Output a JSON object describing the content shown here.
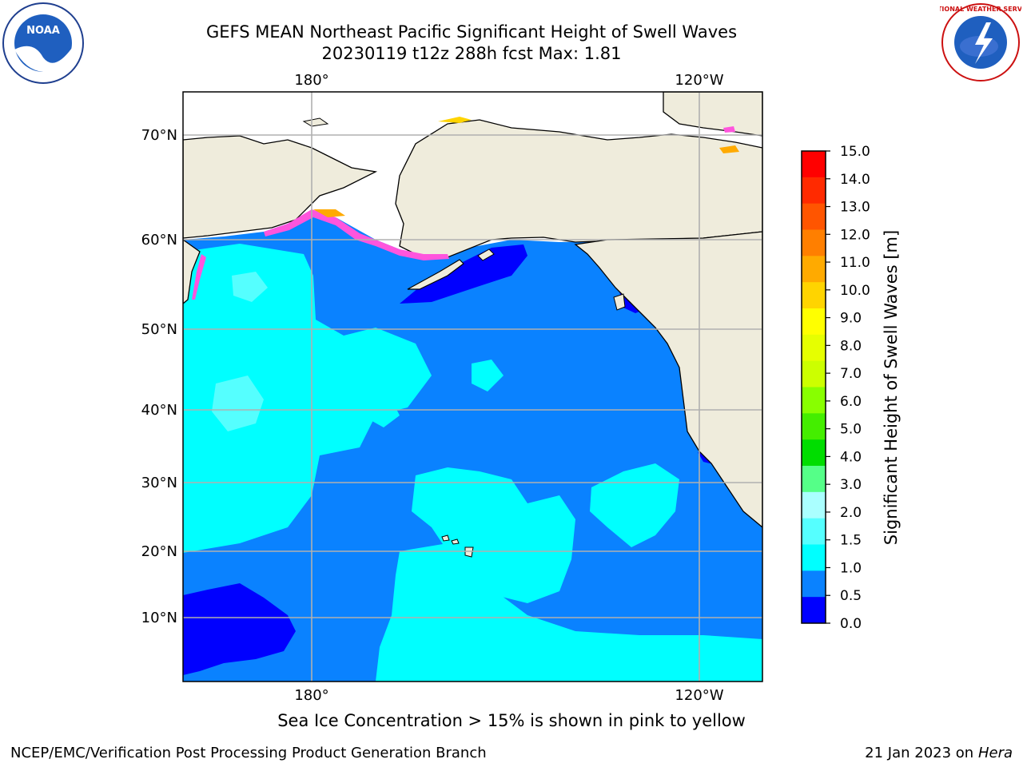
{
  "header": {
    "title_line1": "GEFS MEAN Northeast Pacific Significant Height of Swell Waves",
    "title_line2": "20230119 t12z 288h fcst   Max: 1.81",
    "logo_left_text": "NOAA",
    "logo_right_text": "NATIONAL WEATHER SERVICE"
  },
  "map": {
    "top_lon_labels": [
      "180°",
      "120°W"
    ],
    "bottom_lon_labels": [
      "180°",
      "120°W"
    ],
    "lat_labels": [
      "70°N",
      "60°N",
      "50°N",
      "40°N",
      "30°N",
      "20°N",
      "10°N"
    ],
    "colors": {
      "land": "#efecdc",
      "ocean_mid": "#0a82ff",
      "ocean_light": "#00ffff",
      "ocean_lighter": "#55ffff",
      "ocean_dark": "#0000ff",
      "grid": "#b0b0b0",
      "ice": "#ff55dd"
    }
  },
  "colorbar": {
    "label": "Significant Height of Swell Waves [m]",
    "ticks": [
      "15.0",
      "14.0",
      "13.0",
      "12.0",
      "11.0",
      "10.0",
      "9.0",
      "8.0",
      "7.0",
      "6.0",
      "5.0",
      "4.0",
      "3.0",
      "2.0",
      "1.5",
      "1.0",
      "0.5",
      "0.0"
    ],
    "colors_top_to_bottom": [
      "#ff0000",
      "#ff2a00",
      "#ff5500",
      "#ff7f00",
      "#ffaa00",
      "#ffd400",
      "#ffff00",
      "#e6ff00",
      "#ccff00",
      "#88ff00",
      "#44ee00",
      "#00dd00",
      "#55ff88",
      "#aaffff",
      "#55ffff",
      "#00ffff",
      "#0a82ff",
      "#0000ff"
    ]
  },
  "chart_data": {
    "type": "heatmap",
    "title": "GEFS MEAN Northeast Pacific Significant Height of Swell Waves",
    "subtitle": "20230119 t12z 288h fcst   Max: 1.81",
    "colorbar_label": "Significant Height of Swell Waves [m]",
    "levels": [
      0.0,
      0.5,
      1.0,
      1.5,
      2.0,
      3.0,
      4.0,
      5.0,
      6.0,
      7.0,
      8.0,
      9.0,
      10.0,
      11.0,
      12.0,
      13.0,
      14.0,
      15.0
    ],
    "max_value": 1.81,
    "x_ticks": [
      "180°",
      "120°W"
    ],
    "y_ticks": [
      "10°N",
      "20°N",
      "30°N",
      "40°N",
      "50°N",
      "60°N",
      "70°N"
    ],
    "grid": true
  },
  "footer": {
    "sea_ice_note": "Sea Ice Concentration > 15% is shown in pink to yellow",
    "branch": "NCEP/EMC/Verification Post Processing Product Generation Branch",
    "date": "21 Jan 2023 on ",
    "machine": "Hera"
  }
}
